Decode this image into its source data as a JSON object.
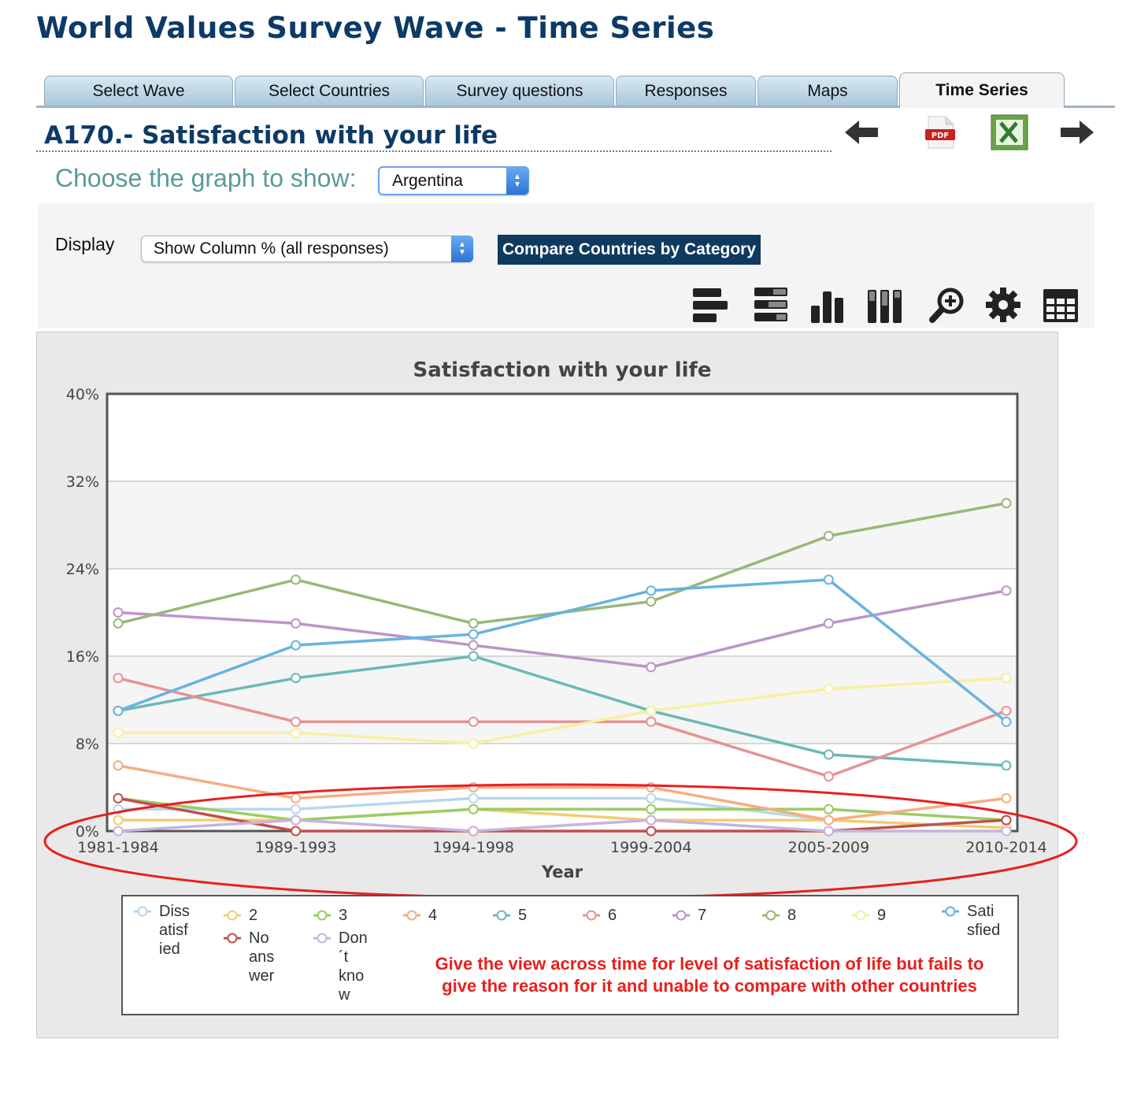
{
  "header": {
    "title": "World Values Survey Wave - Time Series"
  },
  "tabs": [
    {
      "label": "Select Wave",
      "active": false
    },
    {
      "label": "Select Countries",
      "active": false
    },
    {
      "label": "Survey questions",
      "active": false
    },
    {
      "label": "Responses",
      "active": false
    },
    {
      "label": "Maps",
      "active": false
    },
    {
      "label": "Time Series",
      "active": true
    }
  ],
  "question": {
    "title": "A170.- Satisfaction with your life"
  },
  "nav_icons": [
    "arrow-left-icon",
    "pdf-icon",
    "excel-icon",
    "arrow-right-icon"
  ],
  "choose": {
    "label": "Choose the graph to show:",
    "selected": "Argentina"
  },
  "display": {
    "label": "Display",
    "selected": "Show Column % (all responses)"
  },
  "compare_button": "Compare Countries by Category",
  "toolbar_icons": [
    "horizontal-bar-icon",
    "stacked-horizontal-bar-icon",
    "column-chart-icon",
    "stacked-column-icon",
    "zoom-icon",
    "settings-gear-icon",
    "table-icon"
  ],
  "chart_data": {
    "type": "line",
    "title": "Satisfaction with your life",
    "xlabel": "Year",
    "ylabel": "",
    "ylim": [
      0,
      40
    ],
    "yticks": [
      "40%",
      "32%",
      "24%",
      "16%",
      "8%",
      "0%"
    ],
    "categories": [
      "1981-1984",
      "1989-1993",
      "1994-1998",
      "1999-2004",
      "2005-2009",
      "2010-2014"
    ],
    "grid": true,
    "legend_position": "bottom",
    "series": [
      {
        "name": "Diss atisf ied",
        "color": "#b7d7ee",
        "values": [
          2,
          2,
          3,
          3,
          1,
          0.3
        ]
      },
      {
        "name": "2",
        "color": "#f2cc74",
        "values": [
          1,
          1,
          2,
          1,
          1,
          0.3
        ]
      },
      {
        "name": "3",
        "color": "#9ccc62",
        "values": [
          3,
          1,
          2,
          2,
          2,
          1
        ]
      },
      {
        "name": "4",
        "color": "#f5ad83",
        "values": [
          6,
          3,
          4,
          4,
          1,
          3
        ]
      },
      {
        "name": "5",
        "color": "#6cb8b5",
        "values": [
          11,
          14,
          16,
          11,
          7,
          6
        ]
      },
      {
        "name": "6",
        "color": "#e69291",
        "values": [
          14,
          10,
          10,
          10,
          5,
          11
        ]
      },
      {
        "name": "7",
        "color": "#be94cb",
        "values": [
          20,
          19,
          17,
          15,
          19,
          22
        ]
      },
      {
        "name": "8",
        "color": "#98b878",
        "values": [
          19,
          23,
          19,
          21,
          27,
          30
        ]
      },
      {
        "name": "9",
        "color": "#f5f0a2",
        "values": [
          9,
          9,
          8,
          11,
          13,
          14
        ]
      },
      {
        "name": "Sati sfied",
        "color": "#66b3e0",
        "values": [
          11,
          17,
          18,
          22,
          23,
          10
        ]
      },
      {
        "name": "No ans wer",
        "color": "#c0504d",
        "values": [
          3,
          0,
          0,
          0,
          0,
          1
        ]
      },
      {
        "name": "Don ´t kno w",
        "color": "#c8b3dc",
        "values": [
          0,
          1,
          0,
          1,
          0,
          0
        ]
      }
    ]
  },
  "legend": [
    {
      "lines": [
        "Diss",
        "atisf",
        "ied"
      ],
      "color": "#b7d7ee"
    },
    {
      "lines": [
        "2"
      ],
      "color": "#f2cc74"
    },
    {
      "lines": [
        "3"
      ],
      "color": "#9ccc62"
    },
    {
      "lines": [
        "4"
      ],
      "color": "#f5ad83"
    },
    {
      "lines": [
        "5"
      ],
      "color": "#6cb8b5"
    },
    {
      "lines": [
        "6"
      ],
      "color": "#e69291"
    },
    {
      "lines": [
        "7"
      ],
      "color": "#be94cb"
    },
    {
      "lines": [
        "8"
      ],
      "color": "#98b878"
    },
    {
      "lines": [
        "9"
      ],
      "color": "#f5f0a2"
    },
    {
      "lines": [
        "Sati",
        "sfied"
      ],
      "color": "#66b3e0"
    },
    {
      "lines": [
        "No",
        "ans",
        "wer"
      ],
      "color": "#c0504d"
    },
    {
      "lines": [
        "Don",
        "´t",
        "kno",
        "w"
      ],
      "color": "#c8b3dc"
    }
  ],
  "annotation": {
    "text": "Give the view across time for level of satisfaction of life but fails to give the reason for it and unable to compare with other countries",
    "color": "#e8201d"
  }
}
